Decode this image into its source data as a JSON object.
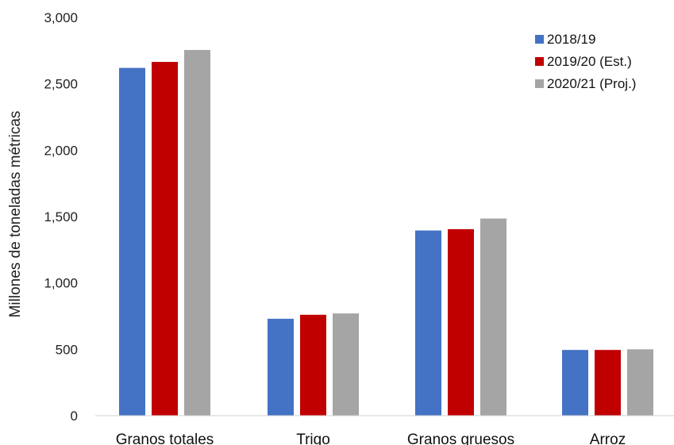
{
  "chart_data": {
    "type": "bar",
    "title": "",
    "xlabel": "",
    "ylabel": "Millones de toneladas métricas",
    "ylim": [
      0,
      3000
    ],
    "yticks": [
      "0",
      "500",
      "1,000",
      "1,500",
      "2,000",
      "2,500",
      "3,000"
    ],
    "categories": [
      "Granos totales",
      "Trigo",
      "Granos gruesos",
      "Arroz"
    ],
    "series": [
      {
        "name": "2018/19",
        "color": "#4472C4",
        "values": [
          2620,
          730,
          1395,
          495
        ]
      },
      {
        "name": "2019/20 (Est.)",
        "color": "#C00000",
        "values": [
          2665,
          760,
          1405,
          495
        ]
      },
      {
        "name": "2020/21 (Proj.)",
        "color": "#A5A5A5",
        "values": [
          2755,
          770,
          1485,
          500
        ]
      }
    ],
    "grid": false,
    "legend_position": "top-right"
  }
}
